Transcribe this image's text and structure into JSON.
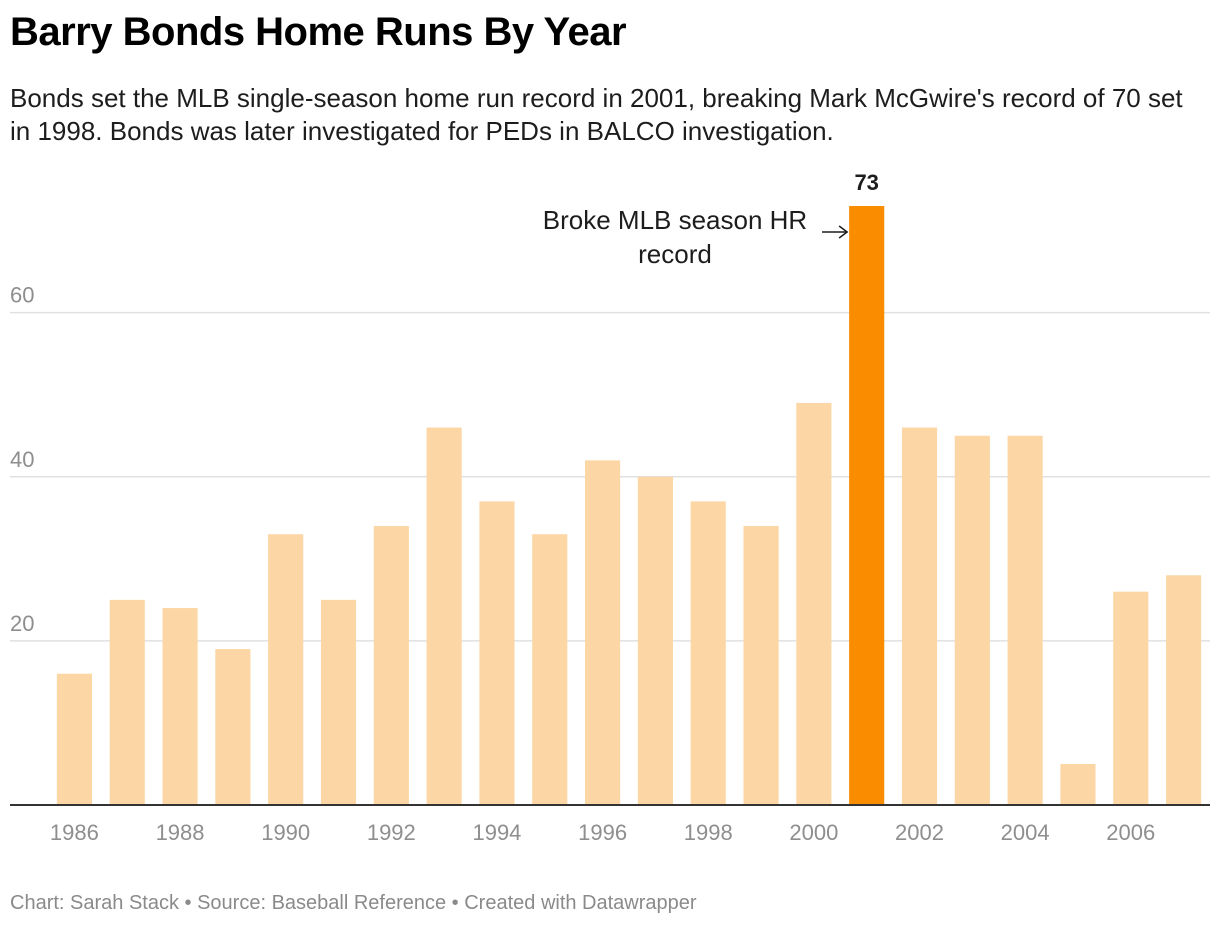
{
  "chart_data": {
    "type": "bar",
    "title": "Barry Bonds Home Runs By Year",
    "subtitle": "Bonds set the MLB single-season home run record in 2001, breaking Mark McGwire's record of 70 set in 1998. Bonds was later investigated for PEDs in BALCO investigation.",
    "categories": [
      "1986",
      "1987",
      "1988",
      "1989",
      "1990",
      "1991",
      "1992",
      "1993",
      "1994",
      "1995",
      "1996",
      "1997",
      "1998",
      "1999",
      "2000",
      "2001",
      "2002",
      "2003",
      "2004",
      "2005",
      "2006",
      "2007"
    ],
    "values": [
      16,
      25,
      24,
      19,
      33,
      25,
      34,
      46,
      37,
      33,
      42,
      40,
      37,
      34,
      49,
      73,
      46,
      45,
      45,
      5,
      26,
      28
    ],
    "x_tick_labels": [
      "1986",
      "1988",
      "1990",
      "1992",
      "1994",
      "1996",
      "1998",
      "2000",
      "2002",
      "2004",
      "2006"
    ],
    "y_ticks": [
      20,
      40,
      60
    ],
    "ylim": [
      0,
      73
    ],
    "xlabel": "",
    "ylabel": "",
    "grid": true,
    "highlight": {
      "category": "2001",
      "value_label": "73",
      "annotation_lines": [
        "Broke MLB season HR",
        "record"
      ]
    },
    "colors": {
      "bar": "#fcd6a4",
      "highlight": "#fa8c00",
      "grid": "#e1e1e1",
      "axis": "#333333"
    }
  },
  "footer": "Chart: Sarah Stack • Source: Baseball Reference • Created with Datawrapper"
}
